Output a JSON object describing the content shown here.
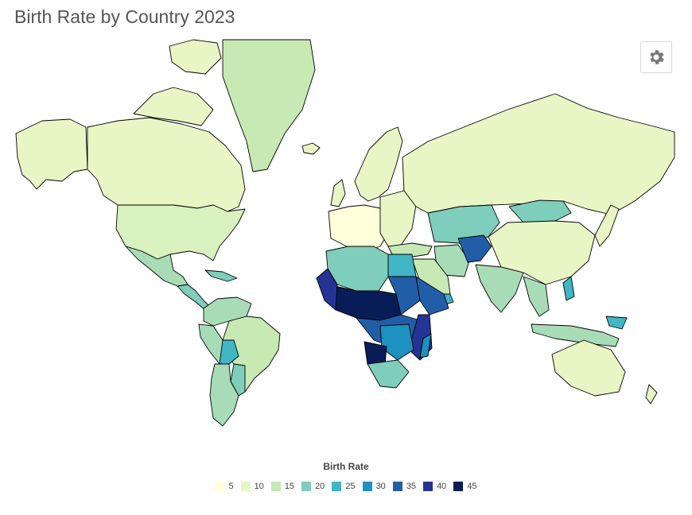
{
  "title": "Birth Rate by Country 2023",
  "legend": {
    "title": "Birth Rate",
    "items": [
      {
        "label": "5",
        "color": "#ffffd9"
      },
      {
        "label": "10",
        "color": "#e8f6c5"
      },
      {
        "label": "15",
        "color": "#c7e9b4"
      },
      {
        "label": "20",
        "color": "#7fcdbb"
      },
      {
        "label": "25",
        "color": "#41b6c4"
      },
      {
        "label": "30",
        "color": "#1d91c0"
      },
      {
        "label": "35",
        "color": "#225ea8"
      },
      {
        "label": "40",
        "color": "#253494"
      },
      {
        "label": "45",
        "color": "#081d58"
      }
    ]
  },
  "toolbar": {
    "settings_icon": "gear-icon"
  }
}
